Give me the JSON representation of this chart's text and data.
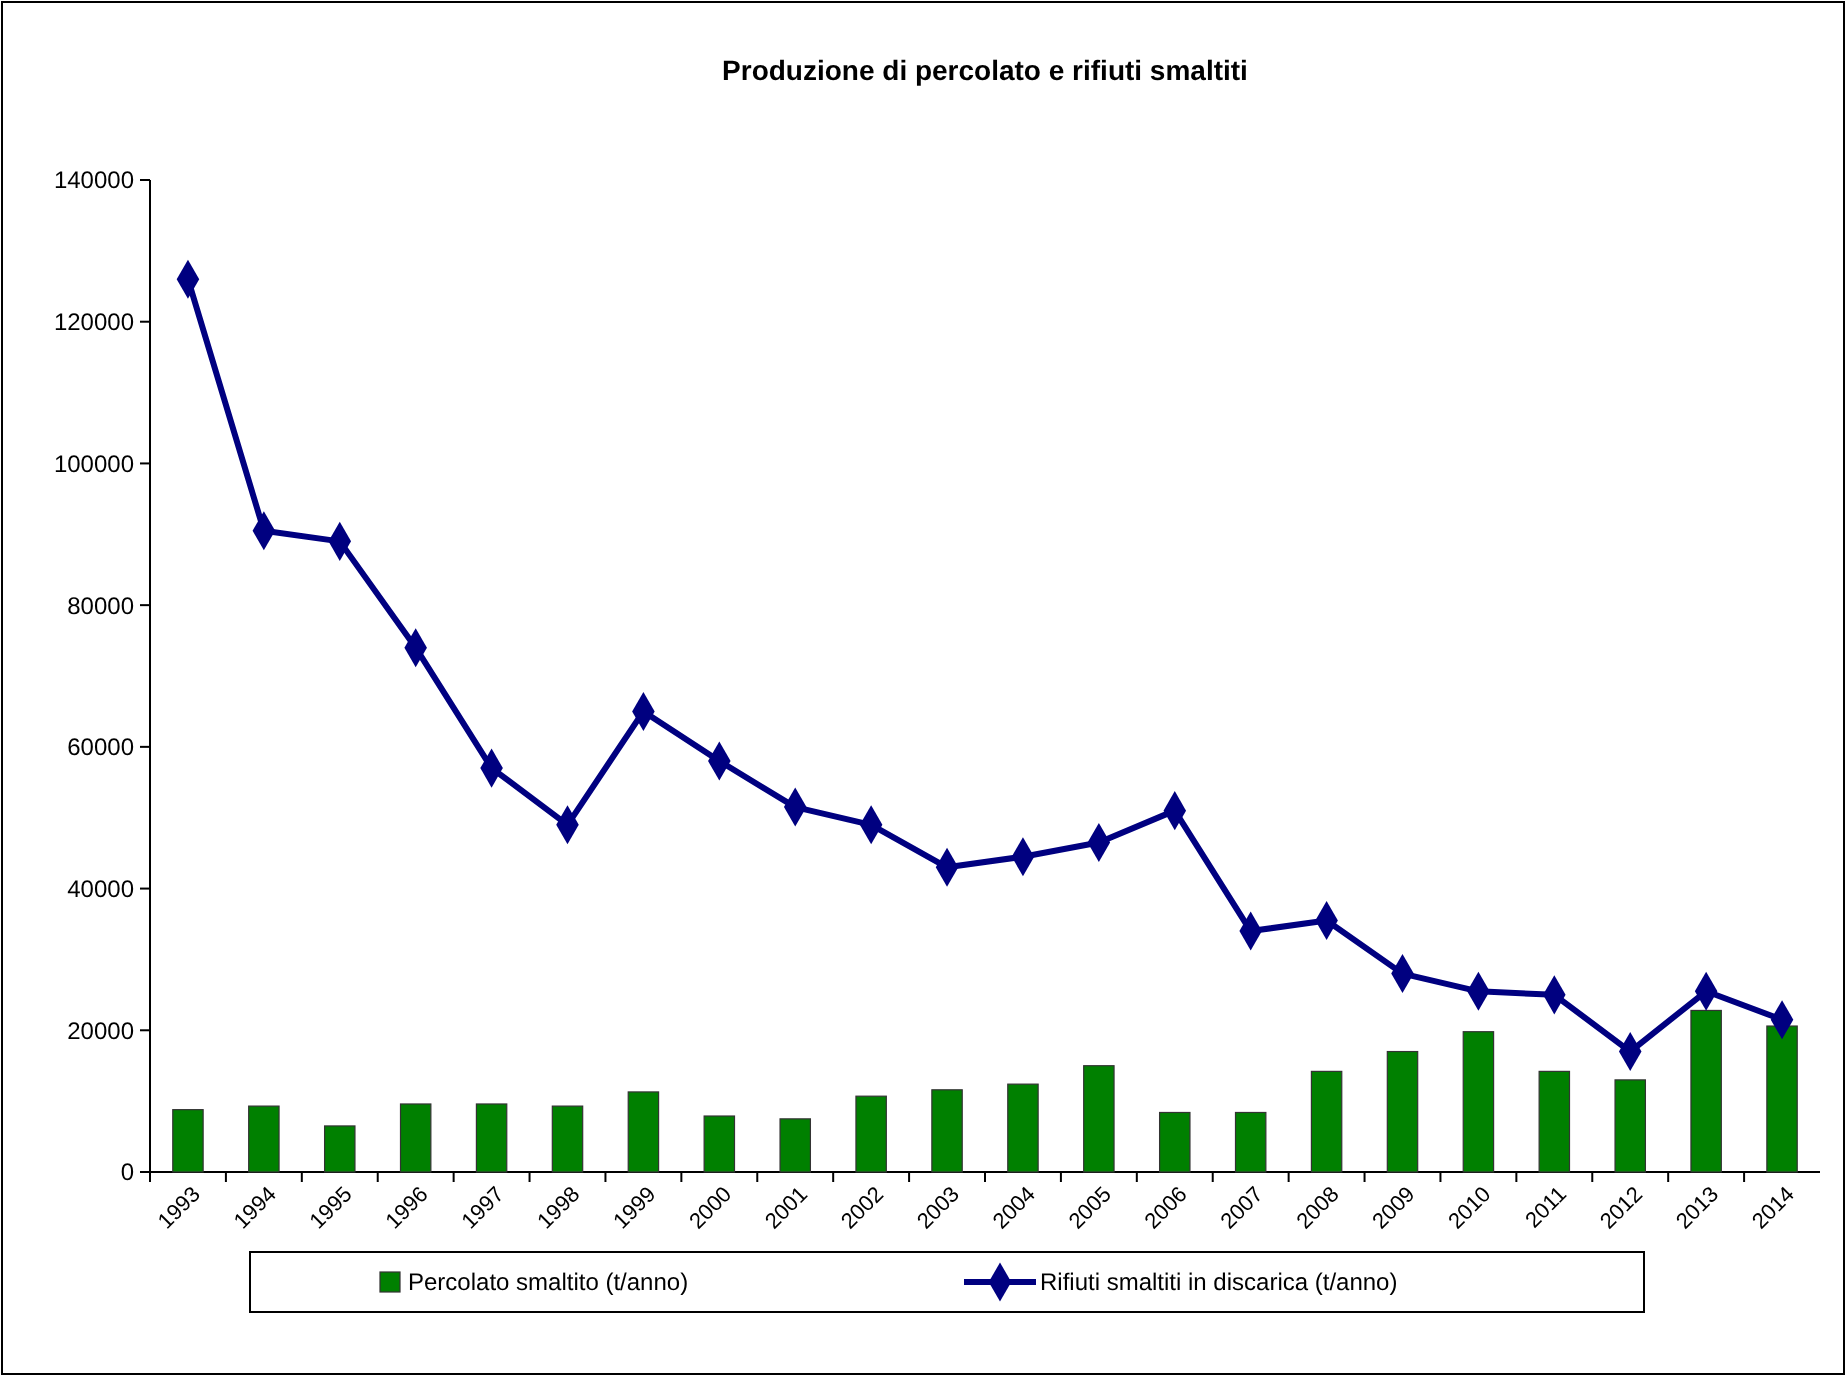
{
  "chart_data": {
    "type": "bar",
    "title": "Produzione di percolato e rifiuti smaltiti",
    "categories": [
      "1993",
      "1994",
      "1995",
      "1996",
      "1997",
      "1998",
      "1999",
      "2000",
      "2001",
      "2002",
      "2003",
      "2004",
      "2005",
      "2006",
      "2007",
      "2008",
      "2009",
      "2010",
      "2011",
      "2012",
      "2013",
      "2014"
    ],
    "series": [
      {
        "name": "Percolato smaltito (t/anno)",
        "color": "#008000",
        "values": [
          8800,
          9300,
          6500,
          9600,
          9600,
          9300,
          11300,
          7900,
          7500,
          10700,
          11600,
          12400,
          15000,
          8400,
          8400,
          14200,
          17000,
          19800,
          14200,
          13000,
          22800,
          20600
        ]
      },
      {
        "name": "Rifiuti smaltiti in discarica (t/anno)",
        "type": "line",
        "color": "#000080",
        "values": [
          126000,
          90500,
          89000,
          74000,
          57000,
          49000,
          65000,
          58000,
          51500,
          49000,
          43000,
          44500,
          46500,
          51000,
          34000,
          35500,
          28000,
          25500,
          25000,
          17000,
          25500,
          21500
        ]
      }
    ],
    "ylim": [
      0,
      140000
    ],
    "yticks": [
      0,
      20000,
      40000,
      60000,
      80000,
      100000,
      120000,
      140000
    ],
    "marker": "diamond",
    "legend": "bottom",
    "grid": false
  }
}
